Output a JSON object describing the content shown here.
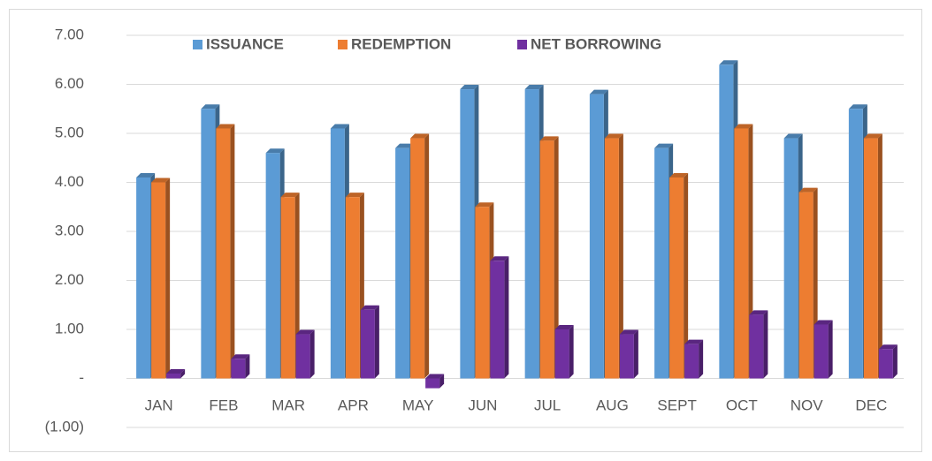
{
  "chart_data": {
    "type": "bar",
    "categories": [
      "JAN",
      "FEB",
      "MAR",
      "APR",
      "MAY",
      "JUN",
      "JUL",
      "AUG",
      "SEPT",
      "OCT",
      "NOV",
      "DEC"
    ],
    "series": [
      {
        "name": "ISSUANCE",
        "color": "#5b9bd5",
        "values": [
          4.1,
          5.5,
          4.6,
          5.1,
          4.7,
          5.9,
          5.9,
          5.8,
          4.7,
          6.4,
          4.9,
          5.5
        ]
      },
      {
        "name": "REDEMPTION",
        "color": "#ed7d31",
        "values": [
          4.0,
          5.1,
          3.7,
          3.7,
          4.9,
          3.5,
          4.85,
          4.9,
          4.1,
          5.1,
          3.8,
          4.9
        ]
      },
      {
        "name": "NET BORROWING",
        "color": "#7030a0",
        "values": [
          0.1,
          0.4,
          0.9,
          1.4,
          -0.2,
          2.4,
          1.0,
          0.9,
          0.7,
          1.3,
          1.1,
          0.6
        ]
      }
    ],
    "ylim": [
      -1,
      7
    ],
    "yticks": [
      {
        "value": -1,
        "label": "(1.00)"
      },
      {
        "value": 0,
        "label": "-"
      },
      {
        "value": 1,
        "label": "1.00"
      },
      {
        "value": 2,
        "label": "2.00"
      },
      {
        "value": 3,
        "label": "3.00"
      },
      {
        "value": 4,
        "label": "4.00"
      },
      {
        "value": 5,
        "label": "5.00"
      },
      {
        "value": 6,
        "label": "6.00"
      },
      {
        "value": 7,
        "label": "7.00"
      }
    ],
    "grid": true,
    "legend": "top"
  }
}
